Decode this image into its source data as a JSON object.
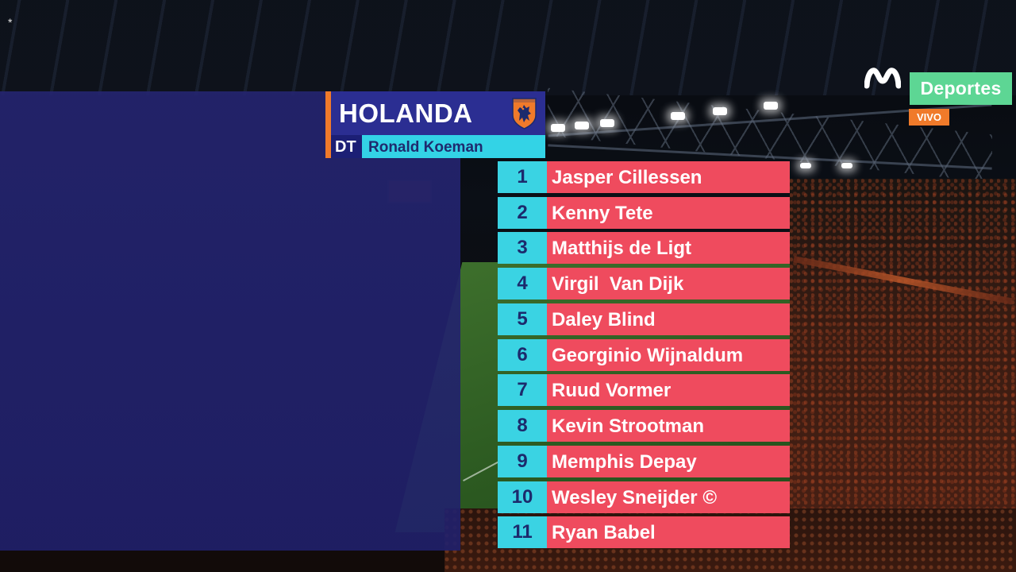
{
  "overlay_marker": "*",
  "broadcaster": {
    "logo_icon": "movistar-m-icon",
    "channel_label": "Deportes",
    "live_label": "VIVO",
    "colors": {
      "channel_bg": "#5dd694",
      "live_bg": "#f07a2a",
      "logo": "#ffffff"
    }
  },
  "team": {
    "name": "HOLANDA",
    "crest_icon": "lion-crest-icon",
    "coach_prefix": "DT",
    "coach_name": "Ronald Koeman",
    "colors": {
      "accent": "#f07a2a",
      "header_bg": "#2b2e92",
      "coach_bg": "#33d3e6"
    }
  },
  "lineup": {
    "colors": {
      "number_bg": "#3ad3e3",
      "name_bg": "#ef4b5e",
      "number_text": "#1c2a6c",
      "name_text": "#ffffff"
    },
    "players": [
      {
        "number": "1",
        "name": "Jasper Cillessen"
      },
      {
        "number": "2",
        "name": "Kenny Tete"
      },
      {
        "number": "3",
        "name": "Matthijs de Ligt"
      },
      {
        "number": "4",
        "name": "Virgil  Van Dijk"
      },
      {
        "number": "5",
        "name": "Daley Blind"
      },
      {
        "number": "6",
        "name": "Georginio Wijnaldum"
      },
      {
        "number": "7",
        "name": "Ruud Vormer"
      },
      {
        "number": "8",
        "name": "Kevin Strootman"
      },
      {
        "number": "9",
        "name": "Memphis Depay"
      },
      {
        "number": "10",
        "name": "Wesley Sneijder ©"
      },
      {
        "number": "11",
        "name": "Ryan Babel"
      }
    ]
  }
}
